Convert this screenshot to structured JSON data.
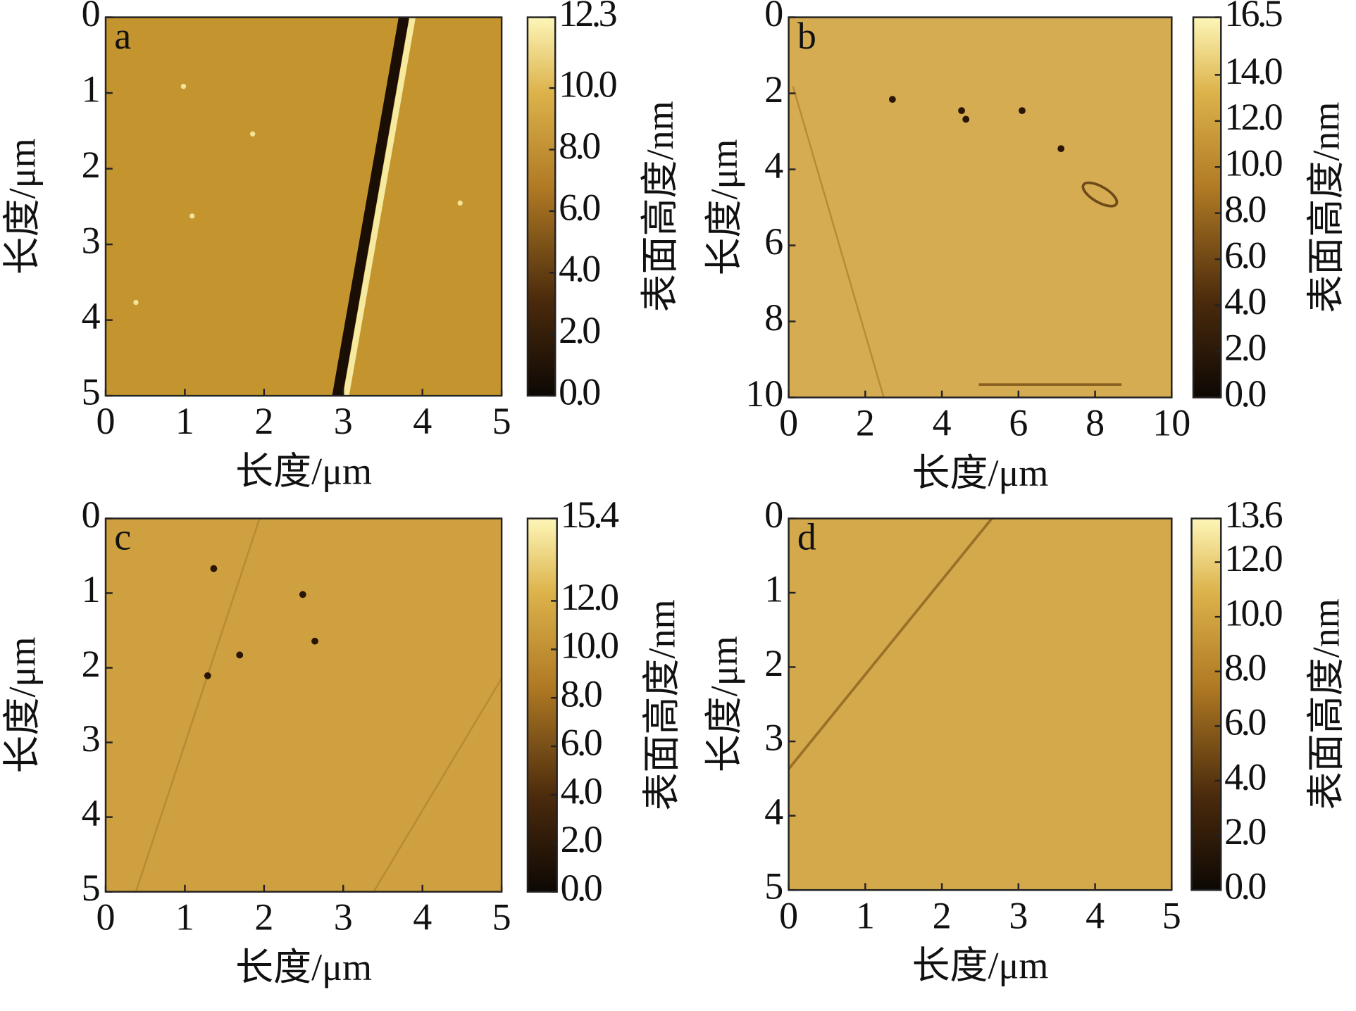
{
  "chart_data": [
    {
      "type": "heatmap",
      "panel": "a",
      "xlabel": "长度/μm",
      "ylabel": "长度/μm",
      "colorbar_label": "表面高度/nm",
      "xlim": [
        0,
        5
      ],
      "xticks": [
        0,
        1,
        2,
        3,
        4,
        5
      ],
      "ylim": [
        0,
        5
      ],
      "yticks": [
        0,
        1,
        2,
        3,
        4,
        5
      ],
      "zlim": [
        0,
        12.3
      ],
      "zticks": [
        {
          "value": 0,
          "label": "0.0"
        },
        {
          "value": 2,
          "label": "2.0"
        },
        {
          "value": 4,
          "label": "4.0"
        },
        {
          "value": 6,
          "label": "6.0"
        },
        {
          "value": 8,
          "label": "8.0"
        },
        {
          "value": 10,
          "label": "10.0"
        },
        12.3
      ]
    },
    {
      "type": "heatmap",
      "panel": "b",
      "xlabel": "长度/μm",
      "ylabel": "长度/μm",
      "colorbar_label": "表面高度/nm",
      "xlim": [
        0,
        10
      ],
      "xticks": [
        0,
        2,
        4,
        6,
        8,
        10
      ],
      "ylim": [
        0,
        10
      ],
      "yticks": [
        0,
        2,
        4,
        6,
        8,
        10
      ],
      "zlim": [
        0,
        16.5
      ],
      "zticks": [
        {
          "value": 0,
          "label": "0.0"
        },
        {
          "value": 2,
          "label": "2.0"
        },
        {
          "value": 4,
          "label": "4.0"
        },
        {
          "value": 6,
          "label": "6.0"
        },
        {
          "value": 8,
          "label": "8.0"
        },
        {
          "value": 10,
          "label": "10.0"
        },
        {
          "value": 12,
          "label": "12.0"
        },
        {
          "value": 14,
          "label": "14.0"
        },
        16.5
      ]
    },
    {
      "type": "heatmap",
      "panel": "c",
      "xlabel": "长度/μm",
      "ylabel": "长度/μm",
      "colorbar_label": "表面高度/nm",
      "xlim": [
        0,
        5
      ],
      "xticks": [
        0,
        1,
        2,
        3,
        4,
        5
      ],
      "ylim": [
        0,
        5
      ],
      "yticks": [
        0,
        1,
        2,
        3,
        4,
        5
      ],
      "zlim": [
        0,
        15.4
      ],
      "zticks": [
        {
          "value": 0,
          "label": "0.0"
        },
        {
          "value": 2,
          "label": "2.0"
        },
        {
          "value": 4,
          "label": "4.0"
        },
        {
          "value": 6,
          "label": "6.0"
        },
        {
          "value": 8,
          "label": "8.0"
        },
        {
          "value": 10,
          "label": "10.0"
        },
        {
          "value": 12,
          "label": "12.0"
        },
        15.4
      ]
    },
    {
      "type": "heatmap",
      "panel": "d",
      "xlabel": "长度/μm",
      "ylabel": "长度/μm",
      "colorbar_label": "表面高度/nm",
      "xlim": [
        0,
        5
      ],
      "xticks": [
        0,
        1,
        2,
        3,
        4,
        5
      ],
      "ylim": [
        0,
        5
      ],
      "yticks": [
        0,
        1,
        2,
        3,
        4,
        5
      ],
      "zlim": [
        0,
        13.6
      ],
      "zticks": [
        {
          "value": 0,
          "label": "0.0"
        },
        {
          "value": 2,
          "label": "2.0"
        },
        {
          "value": 4,
          "label": "4.0"
        },
        {
          "value": 6,
          "label": "6.0"
        },
        {
          "value": 8,
          "label": "8.0"
        },
        {
          "value": 10,
          "label": "10.0"
        },
        {
          "value": 12,
          "label": "12.0"
        },
        13.6
      ]
    }
  ]
}
